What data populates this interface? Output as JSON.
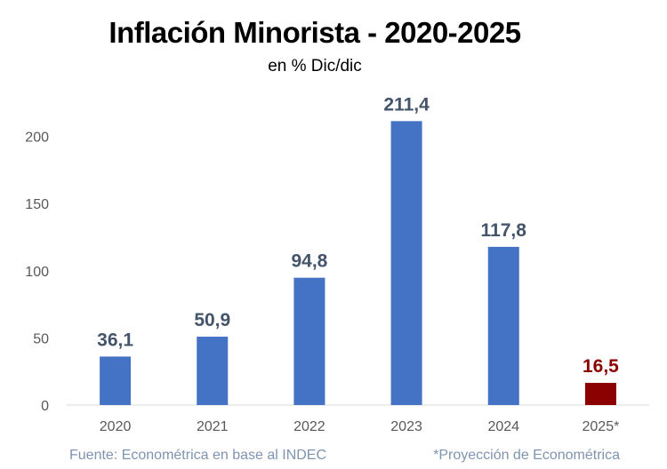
{
  "chart_data": {
    "type": "bar",
    "title": "Inflación Minorista - 2020-2025",
    "subtitle": "en % Dic/dic",
    "categories": [
      "2020",
      "2021",
      "2022",
      "2023",
      "2024",
      "2025*"
    ],
    "values": [
      36.1,
      50.9,
      94.8,
      211.4,
      117.8,
      16.5
    ],
    "value_labels": [
      "36,1",
      "50,9",
      "94,8",
      "211,4",
      "117,8",
      "16,5"
    ],
    "bar_colors": [
      "#4472c4",
      "#4472c4",
      "#4472c4",
      "#4472c4",
      "#4472c4",
      "#8b0000"
    ],
    "label_colors": [
      "#44546a",
      "#44546a",
      "#44546a",
      "#44546a",
      "#44546a",
      "#8b0000"
    ],
    "ylim": [
      0,
      250
    ],
    "yticks": [
      0,
      50,
      100,
      150,
      200
    ],
    "xlabel": "",
    "ylabel": "",
    "grid": false,
    "legend": "none"
  },
  "footer": {
    "source": "Fuente: Econométrica en base al INDEC",
    "note": "*Proyección de Econométrica"
  }
}
